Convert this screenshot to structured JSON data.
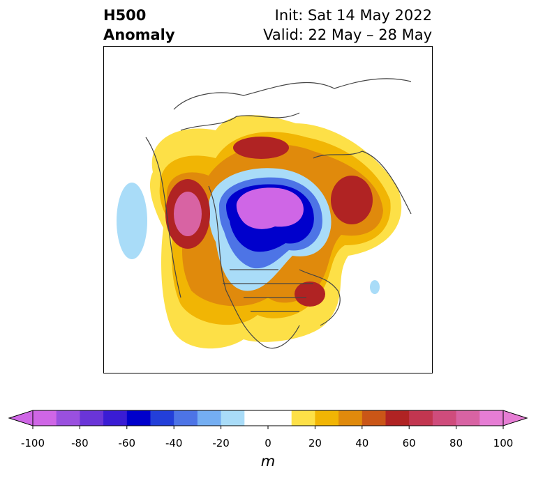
{
  "header": {
    "title_line1": "H500",
    "title_line2": "Anomaly",
    "init": "Init: Sat 14 May 2022",
    "valid": "Valid: 22 May – 28 May"
  },
  "colorbar": {
    "unit": "m",
    "ticks": [
      "-100",
      "-80",
      "-60",
      "-40",
      "-20",
      "0",
      "20",
      "40",
      "60",
      "80",
      "100"
    ],
    "levels": [
      -100,
      -90,
      -80,
      -70,
      -60,
      -50,
      -40,
      -30,
      -20,
      -10,
      10,
      20,
      30,
      40,
      50,
      60,
      70,
      80,
      90,
      100
    ],
    "colors": [
      "#cf66e6",
      "#9a50df",
      "#6a35d8",
      "#3a1cd4",
      "#0000cc",
      "#233fd9",
      "#4d74e6",
      "#74aef2",
      "#a9dcf8",
      "#ffffff",
      "#fde047",
      "#f1b504",
      "#e08a0c",
      "#ca5617",
      "#b02323",
      "#c23650",
      "#cf4c7c",
      "#d863a3",
      "#e67dd4"
    ],
    "under_color": "#cf66e6",
    "over_color": "#e67dd4"
  }
}
